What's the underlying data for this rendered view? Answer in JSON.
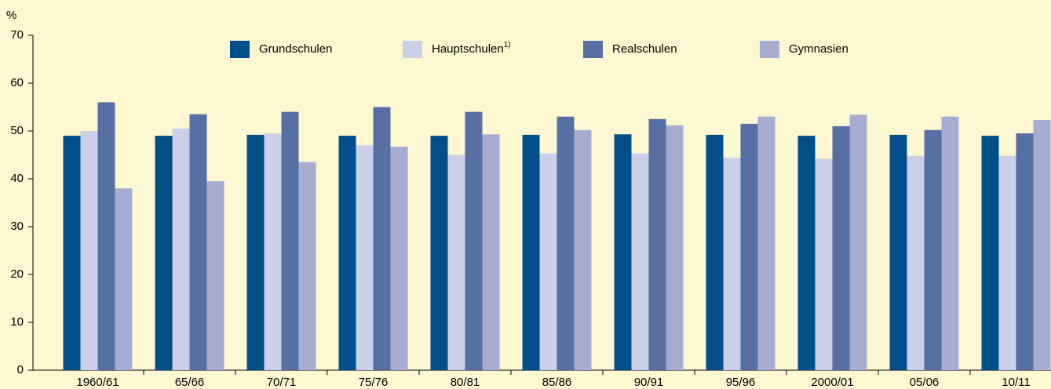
{
  "chart_data": {
    "type": "bar",
    "y_label": "%",
    "categories": [
      "1960/61",
      "65/66",
      "70/71",
      "75/76",
      "80/81",
      "85/86",
      "90/91",
      "95/96",
      "2000/01",
      "05/06",
      "10/11"
    ],
    "series": [
      {
        "name": "Grundschulen",
        "color": "#004f8a",
        "values": [
          49,
          49,
          49.2,
          49,
          49,
          49.2,
          49.3,
          49.2,
          49,
          49.2,
          49
        ]
      },
      {
        "name": "Hauptschulen",
        "name_sup": "1)",
        "color": "#c9d0e7",
        "values": [
          50,
          50.5,
          49.5,
          47,
          45,
          45.3,
          45.3,
          44.4,
          44.2,
          44.8,
          44.8
        ]
      },
      {
        "name": "Realschulen",
        "color": "#5670a4",
        "values": [
          56,
          53.5,
          54,
          55,
          54,
          53,
          52.5,
          51.5,
          51,
          50.2,
          49.5
        ]
      },
      {
        "name": "Gymnasien",
        "color": "#a6add1",
        "values": [
          38,
          39.5,
          43.5,
          46.7,
          49.3,
          50.2,
          51.2,
          53,
          53.4,
          53,
          52.3
        ]
      }
    ],
    "ylim": [
      0,
      70
    ],
    "yticks": [
      0,
      10,
      20,
      30,
      40,
      50,
      60,
      70
    ],
    "grid": false,
    "legend": "top"
  }
}
